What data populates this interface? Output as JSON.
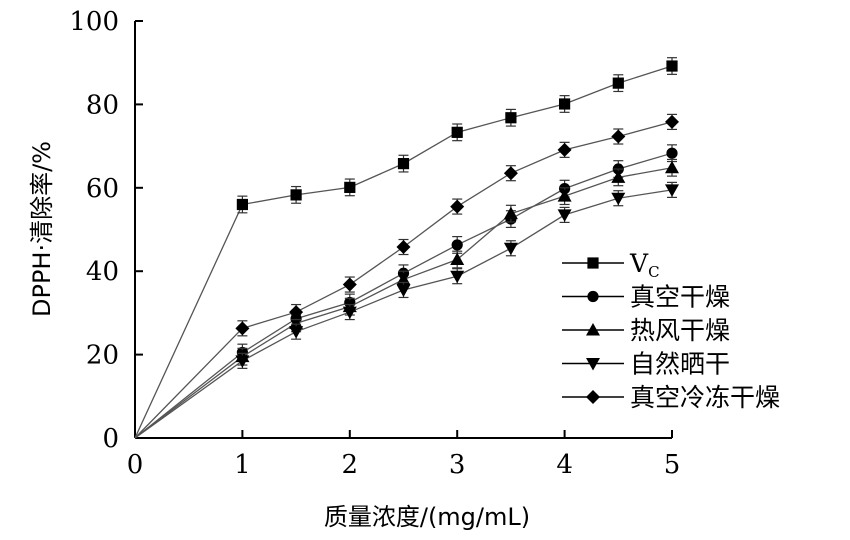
{
  "chart_data": {
    "type": "line",
    "title": "",
    "xlabel": "质量浓度/(mg/mL)",
    "ylabel": "DPPH·清除率/%",
    "xlim": [
      0,
      5
    ],
    "ylim": [
      0,
      100
    ],
    "xticks": [
      0,
      1,
      2,
      3,
      4,
      5
    ],
    "yticks": [
      0,
      20,
      40,
      60,
      80,
      100
    ],
    "legend_position": "right",
    "x": [
      0,
      1,
      1.5,
      2,
      2.5,
      3,
      3.5,
      4,
      4.5,
      5
    ],
    "series": [
      {
        "name": "VC",
        "name_main": "V",
        "name_sub": "C",
        "marker": "square",
        "values": [
          0,
          56,
          58.3,
          60.1,
          65.8,
          73.3,
          76.8,
          80.1,
          85.1,
          89.2
        ],
        "error": 2
      },
      {
        "name": "真空干燥",
        "marker": "circle",
        "values": [
          0,
          20.5,
          28.6,
          32.5,
          39.5,
          46.3,
          52.5,
          59.8,
          64.5,
          68.3
        ],
        "error": 2
      },
      {
        "name": "热风干燥",
        "marker": "triangle-up",
        "values": [
          0,
          19.5,
          27.5,
          31.5,
          38,
          42.8,
          53.8,
          58,
          62.5,
          64.8
        ],
        "error": 2
      },
      {
        "name": "自然晒干",
        "marker": "triangle-down",
        "values": [
          0,
          18.5,
          25.5,
          30.2,
          35.5,
          38.8,
          45.5,
          53.5,
          57.5,
          59.5
        ],
        "error": 1.8
      },
      {
        "name": "真空冷冻干燥",
        "marker": "diamond",
        "values": [
          0,
          26.3,
          30.2,
          36.8,
          45.8,
          55.5,
          63.5,
          69.1,
          72.3,
          75.8
        ],
        "error": 1.8
      }
    ]
  }
}
